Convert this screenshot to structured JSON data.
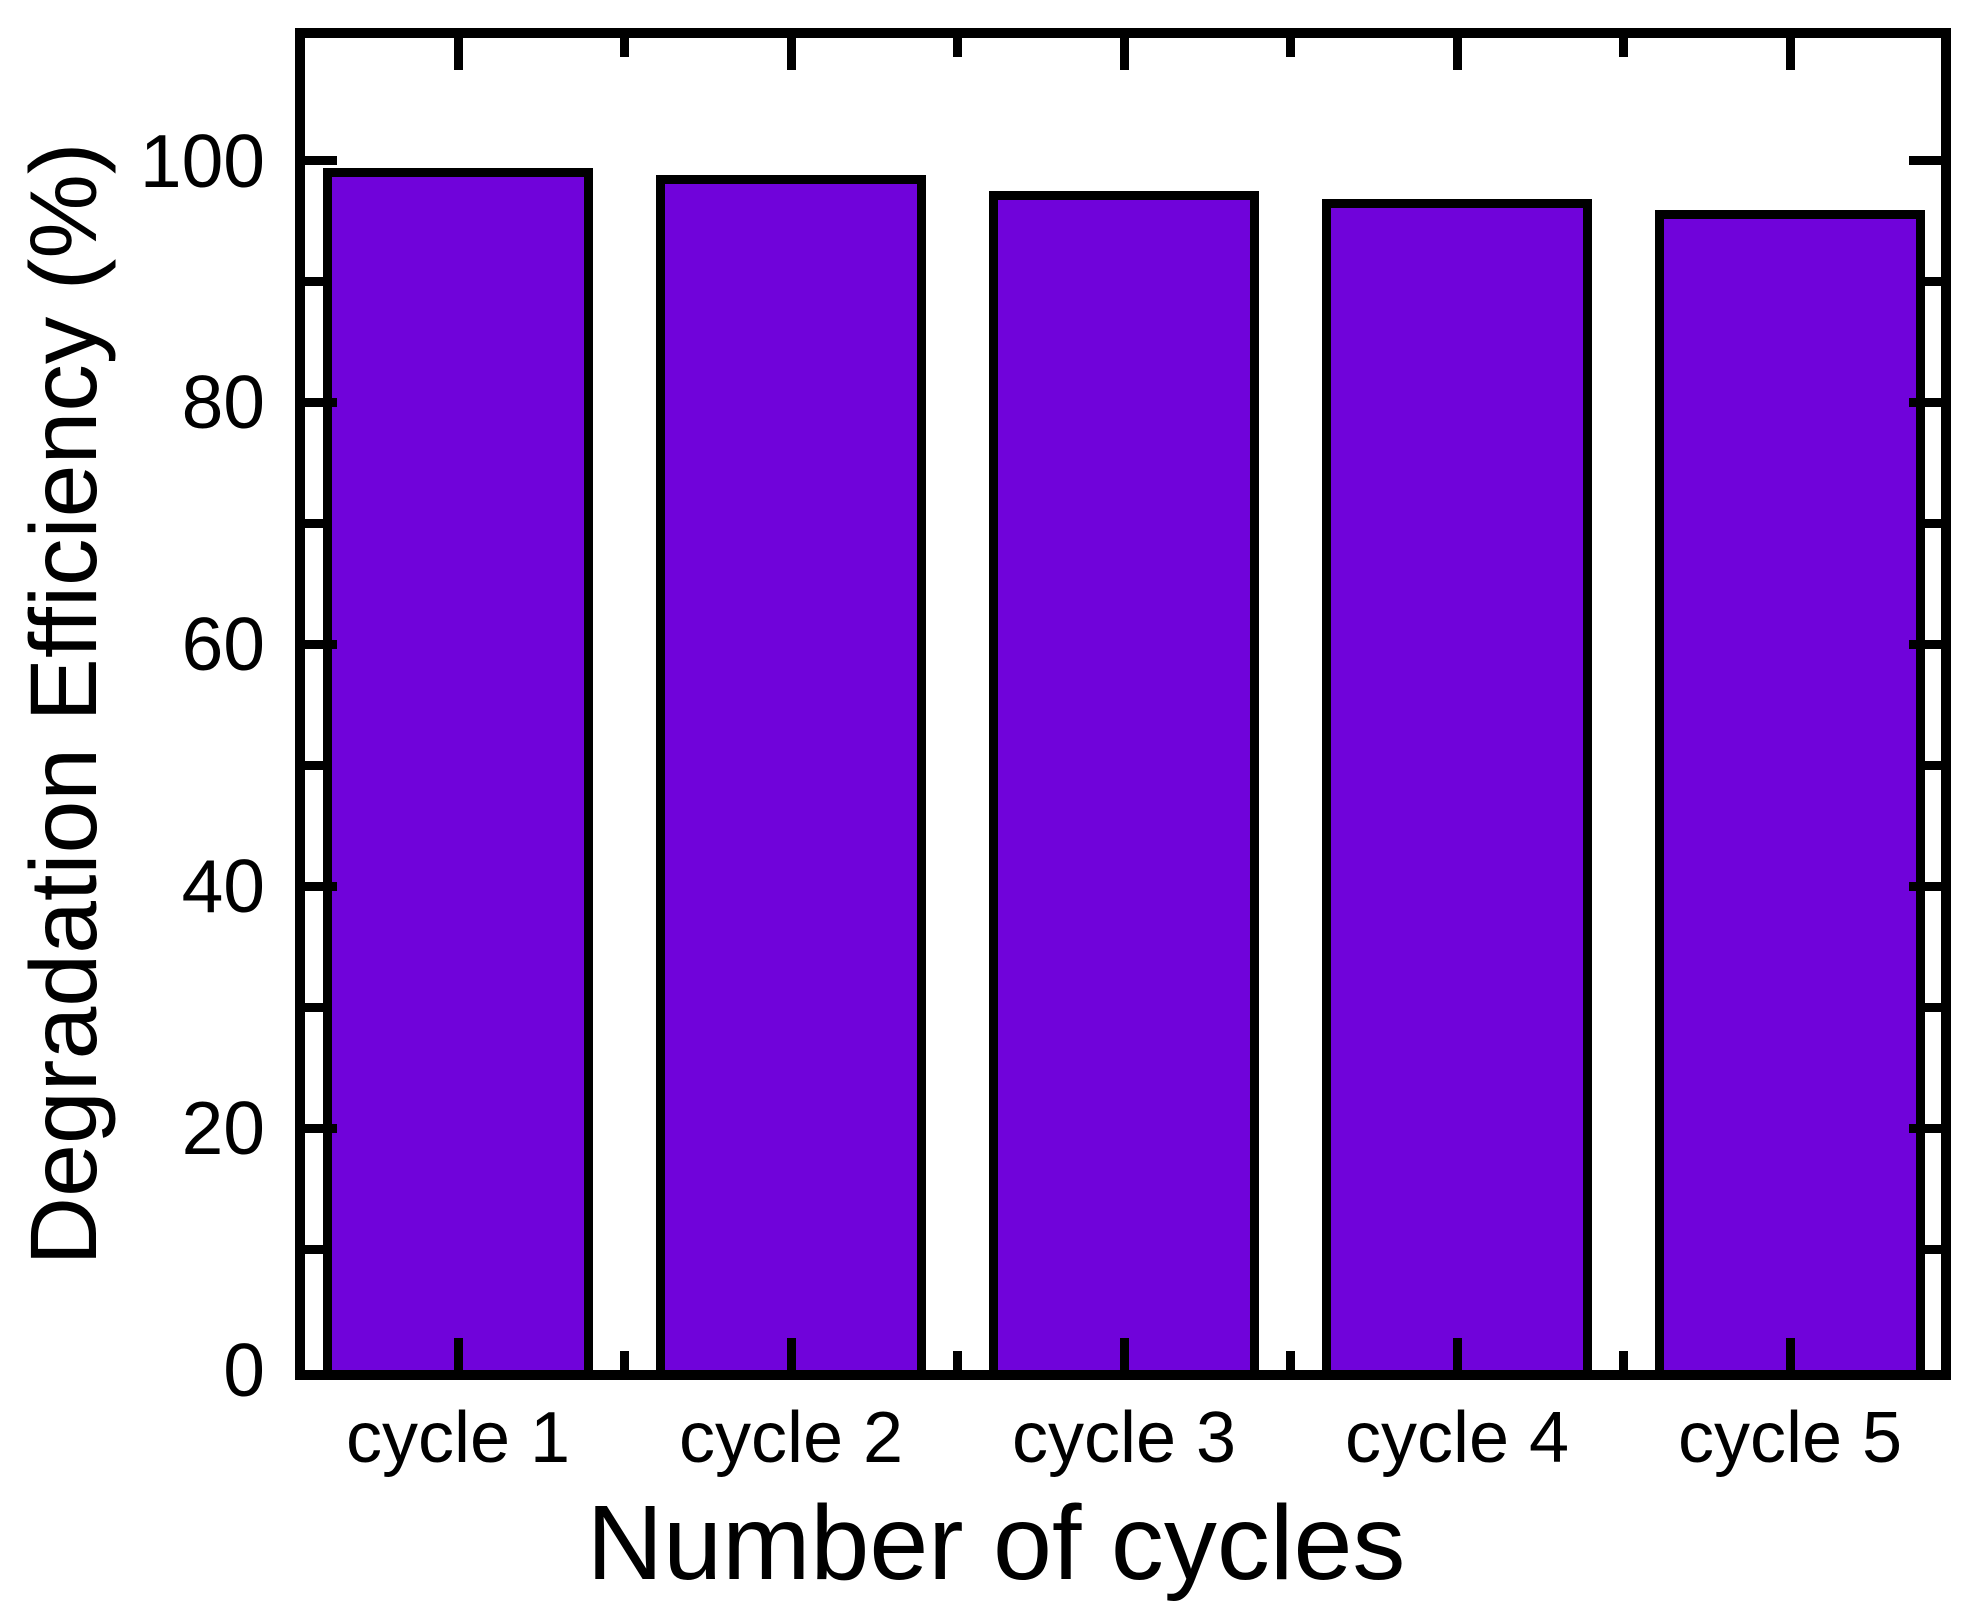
{
  "chart_data": {
    "type": "bar",
    "title": "",
    "categories": [
      "cycle 1",
      "cycle 2",
      "cycle 3",
      "cycle 4",
      "cycle 5"
    ],
    "values": [
      99.4,
      98.8,
      97.5,
      96.8,
      95.9
    ],
    "xlabel": "Number of cycles",
    "ylabel": "Degradation Efficiency (%)",
    "ylim": [
      0,
      110
    ],
    "yticks_major": [
      0,
      20,
      40,
      60,
      80,
      100
    ],
    "yticks_minor": [
      10,
      30,
      50,
      70,
      90
    ],
    "grid": false,
    "legend": "none",
    "bar_color": "#7003DA",
    "bar_border_color": "#000000",
    "axis_color": "#000000",
    "background_color": "#FFFFFF"
  }
}
